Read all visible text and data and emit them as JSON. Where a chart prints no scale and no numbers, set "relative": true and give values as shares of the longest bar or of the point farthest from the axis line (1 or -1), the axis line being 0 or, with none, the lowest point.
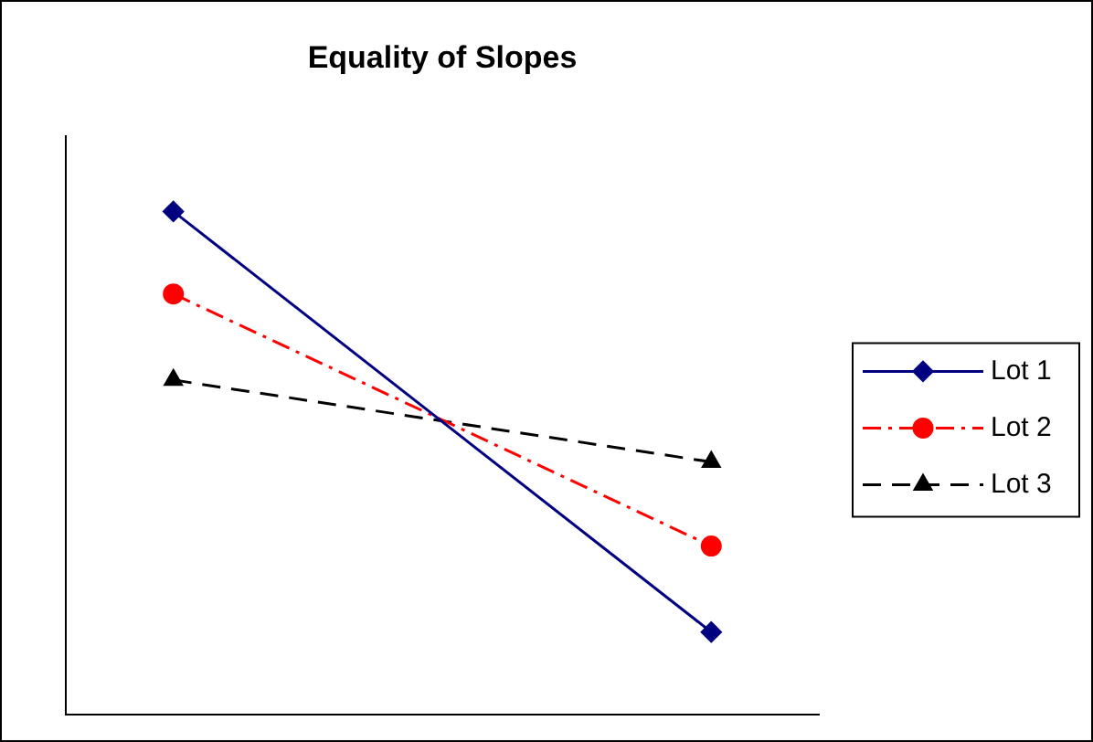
{
  "chart_data": {
    "type": "line",
    "title": "Equality of Slopes",
    "categories": [
      null,
      null
    ],
    "relative": true,
    "legend": "right",
    "grid": false,
    "series": [
      {
        "name": "Lot 1",
        "color": "#000080",
        "values": [
          1,
          0.164
        ],
        "marker": "diamond",
        "line_style": "solid"
      },
      {
        "name": "Lot 2",
        "color": "#ff0000",
        "values": [
          0.836,
          0.335
        ],
        "marker": "circle",
        "line_style": "dashdot"
      },
      {
        "name": "Lot 3",
        "color": "#000000",
        "values": [
          0.665,
          0.502
        ],
        "marker": "triangle",
        "line_style": "dashed"
      }
    ]
  }
}
